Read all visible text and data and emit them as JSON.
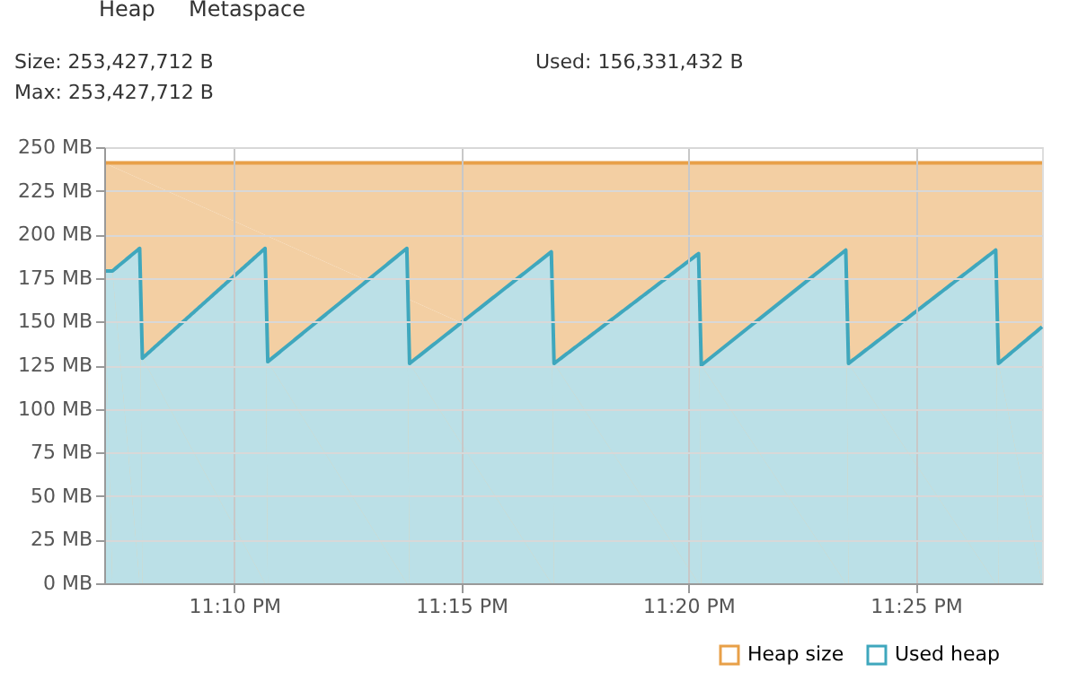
{
  "chart_data": {
    "type": "area",
    "annotations": [
      "Heap",
      "Metaspace",
      "Size: 253,427,712 B",
      "Used: 156,331,432 B",
      "Max: 253,427,712 B"
    ],
    "xlim": [
      23.119,
      23.463
    ],
    "xticks": [
      {
        "value": 23.1667,
        "label": "11:10 PM"
      },
      {
        "value": 23.25,
        "label": "11:15 PM"
      },
      {
        "value": 23.3333,
        "label": "11:20 PM"
      },
      {
        "value": 23.4167,
        "label": "11:25 PM"
      }
    ],
    "ylim": [
      0,
      250
    ],
    "yticks": [
      {
        "value": 0,
        "label": "0 MB"
      },
      {
        "value": 25,
        "label": "25 MB"
      },
      {
        "value": 50,
        "label": "50 MB"
      },
      {
        "value": 75,
        "label": "75 MB"
      },
      {
        "value": 100,
        "label": "100 MB"
      },
      {
        "value": 125,
        "label": "125 MB"
      },
      {
        "value": 150,
        "label": "150 MB"
      },
      {
        "value": 175,
        "label": "175 MB"
      },
      {
        "value": 200,
        "label": "200 MB"
      },
      {
        "value": 225,
        "label": "225 MB"
      },
      {
        "value": 250,
        "label": "250 MB"
      }
    ],
    "series": [
      {
        "name": "Heap size",
        "color": "#e8a048",
        "x": [
          23.119,
          23.463
        ],
        "values": [
          241,
          241
        ]
      },
      {
        "name": "Used heap",
        "color": "#3fa7bd",
        "x": [
          23.119,
          23.122,
          23.132,
          23.133,
          23.178,
          23.179,
          23.23,
          23.231,
          23.283,
          23.284,
          23.337,
          23.338,
          23.391,
          23.392,
          23.446,
          23.447,
          23.463
        ],
        "values": [
          179,
          179,
          192,
          129,
          192,
          127,
          192,
          126,
          190,
          126,
          189,
          125,
          191,
          126,
          191,
          126,
          147
        ]
      }
    ],
    "grid": true,
    "legend": "bottom right",
    "marker": "none",
    "line_style": "solid"
  }
}
